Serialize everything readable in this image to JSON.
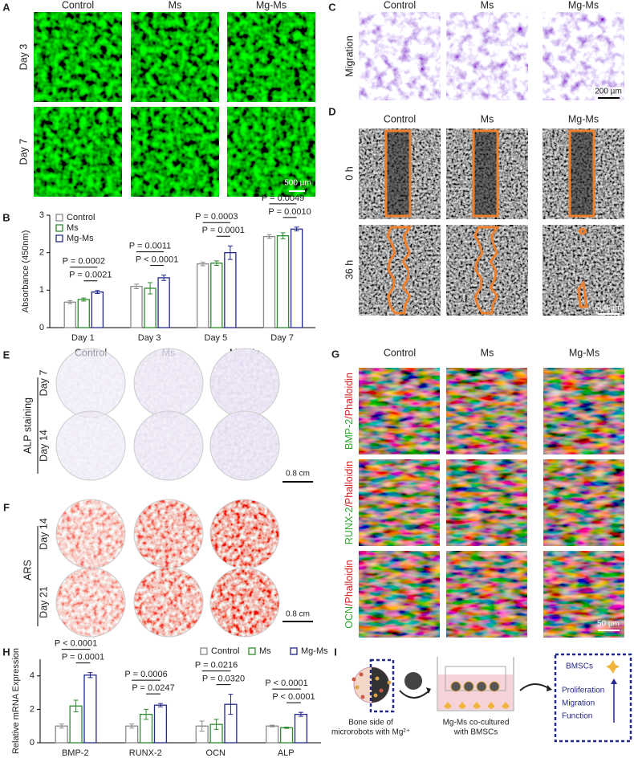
{
  "panels": {
    "A": {
      "label": "A",
      "columns": [
        "Control",
        "Ms",
        "Mg-Ms"
      ],
      "rows": [
        "Day 3",
        "Day 7"
      ],
      "scale_bar": "500 µm"
    },
    "C": {
      "label": "C",
      "columns": [
        "Control",
        "Ms",
        "Mg-Ms"
      ],
      "rows": [
        "Migration"
      ],
      "scale_bar": "200 µm"
    },
    "D": {
      "label": "D",
      "columns": [
        "Control",
        "Ms",
        "Mg-Ms"
      ],
      "rows": [
        "0 h",
        "36 h"
      ],
      "scale_bar": "500 µm"
    },
    "E": {
      "label": "E",
      "columns": [
        "Control",
        "Ms",
        "Mg-Ms"
      ],
      "rows": [
        "Day 7",
        "Day 14"
      ],
      "group": "ALP staining",
      "scale_bar": "0.8 cm"
    },
    "F": {
      "label": "F",
      "rows": [
        "Day 14",
        "Day 21"
      ],
      "group": "ARS",
      "scale_bar": "0.8 cm"
    },
    "G": {
      "label": "G",
      "columns": [
        "Control",
        "Ms",
        "Mg-Ms"
      ],
      "rows": [
        {
          "marker": "BMP-2",
          "stain": "/Phalloidin"
        },
        {
          "marker": "RUNX-2",
          "stain": "/Phalloidin"
        },
        {
          "marker": "OCN",
          "stain": "/Phalloidin"
        }
      ],
      "scale_bar": "50 µm"
    },
    "I": {
      "label": "I",
      "left": [
        "Bone side of",
        "microrobots with Mg²⁺"
      ],
      "middle": [
        "Mg-Ms co-cultured",
        "with BMSCs"
      ],
      "box_title": "BMSCs",
      "box_items": [
        "Proliferation",
        "Migration",
        "Function"
      ]
    }
  },
  "chart_data": [
    {
      "label": "B",
      "type": "bar",
      "ylabel": "Absorbance (450nm)",
      "categories": [
        "Day 1",
        "Day 3",
        "Day 5",
        "Day 7"
      ],
      "series": [
        {
          "name": "Control",
          "color": "#8a8a8a",
          "values": [
            0.68,
            1.1,
            1.7,
            2.43
          ],
          "errors": [
            0.04,
            0.06,
            0.05,
            0.05
          ]
        },
        {
          "name": "Ms",
          "color": "#2e8b2e",
          "values": [
            0.75,
            1.05,
            1.72,
            2.45
          ],
          "errors": [
            0.04,
            0.15,
            0.06,
            0.08
          ]
        },
        {
          "name": "Mg-Ms",
          "color": "#22288c",
          "values": [
            0.95,
            1.33,
            2.0,
            2.63
          ],
          "errors": [
            0.04,
            0.07,
            0.18,
            0.05
          ]
        }
      ],
      "ylim": [
        0,
        3
      ],
      "yticks": [
        0,
        1,
        2,
        3
      ],
      "legend": "top-left",
      "annotations": [
        "P = 0.0002",
        "P = 0.0021",
        "P = 0.0011",
        "P < 0.0001",
        "P = 0.0003",
        "P = 0.0001",
        "P = 0.0049",
        "P = 0.0010"
      ]
    },
    {
      "label": "H",
      "type": "bar",
      "ylabel": "Relative mRNA Expression",
      "categories": [
        "BMP-2",
        "RUNX-2",
        "OCN",
        "ALP"
      ],
      "series": [
        {
          "name": "Control",
          "color": "#8a8a8a",
          "values": [
            1.0,
            1.0,
            1.0,
            1.0
          ],
          "errors": [
            0.12,
            0.12,
            0.3,
            0.05
          ]
        },
        {
          "name": "Ms",
          "color": "#2e8b2e",
          "values": [
            2.2,
            1.7,
            1.1,
            0.9
          ],
          "errors": [
            0.35,
            0.3,
            0.3,
            0.04
          ]
        },
        {
          "name": "Mg-Ms",
          "color": "#22288c",
          "values": [
            4.05,
            2.25,
            2.3,
            1.7
          ],
          "errors": [
            0.15,
            0.1,
            0.6,
            0.12
          ]
        }
      ],
      "ylim": [
        0,
        5
      ],
      "yticks": [
        0,
        2,
        4
      ],
      "legend": "top",
      "annotations": [
        "P < 0.0001",
        "P = 0.0001",
        "P = 0.0006",
        "P = 0.0247",
        "P = 0.0216",
        "P = 0.0320",
        "P < 0.0001",
        "P < 0.0001"
      ]
    }
  ]
}
